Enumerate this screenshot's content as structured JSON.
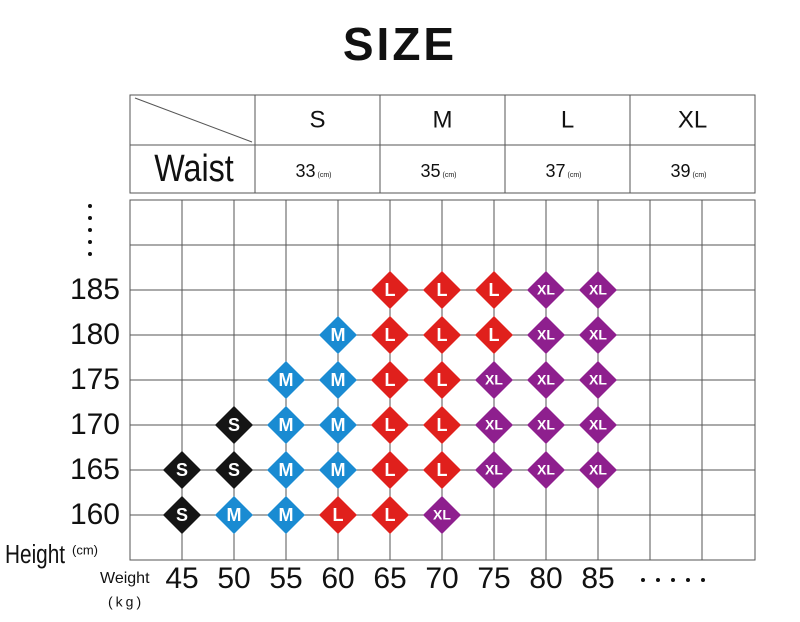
{
  "title": "SIZE",
  "waist_table": {
    "sizes": [
      "S",
      "M",
      "L",
      "XL"
    ],
    "row_label": "Waist",
    "values": [
      "33",
      "35",
      "37",
      "39"
    ],
    "unit": "(cm)"
  },
  "grid": {
    "height_label": "Height",
    "height_unit": "(cm)",
    "weight_label": "Weight",
    "weight_unit": "(kg)",
    "weights": [
      45,
      50,
      55,
      60,
      65,
      70,
      75,
      80,
      85
    ],
    "rows": [
      {
        "height": 185,
        "sizes": [
          null,
          null,
          null,
          null,
          "L",
          "L",
          "L",
          "XL",
          "XL"
        ]
      },
      {
        "height": 180,
        "sizes": [
          null,
          null,
          null,
          "M",
          "L",
          "L",
          "L",
          "XL",
          "XL"
        ]
      },
      {
        "height": 175,
        "sizes": [
          null,
          null,
          "M",
          "M",
          "L",
          "L",
          "XL",
          "XL",
          "XL"
        ]
      },
      {
        "height": 170,
        "sizes": [
          null,
          "S",
          "M",
          "M",
          "L",
          "L",
          "XL",
          "XL",
          "XL"
        ]
      },
      {
        "height": 165,
        "sizes": [
          "S",
          "S",
          "M",
          "M",
          "L",
          "L",
          "XL",
          "XL",
          "XL"
        ]
      },
      {
        "height": 160,
        "sizes": [
          "S",
          "M",
          "M",
          "L",
          "L",
          "XL",
          null,
          null,
          null
        ]
      }
    ],
    "colors": {
      "S": "#151515",
      "M": "#1a8bd2",
      "L": "#e0201c",
      "XL": "#8e1f8e"
    }
  }
}
